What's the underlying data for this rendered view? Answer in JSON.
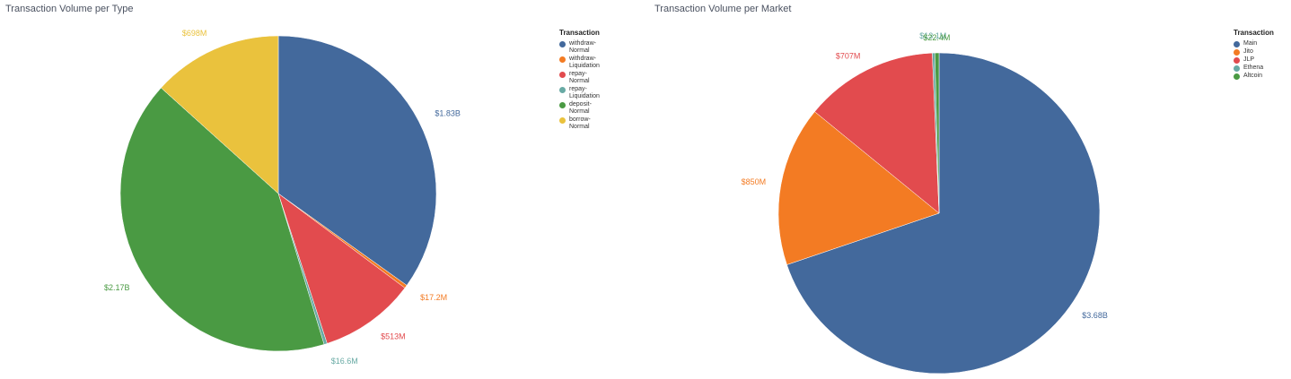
{
  "chart_data": [
    {
      "type": "pie",
      "title": "Transaction Volume per Type",
      "legend_title": "Transaction",
      "legend_position": "right",
      "slices": [
        {
          "name": "withdraw-Normal",
          "value": 1830,
          "label": "$1.83B",
          "color": "#43699c"
        },
        {
          "name": "withdraw-Liquidation",
          "value": 17.2,
          "label": "$17.2M",
          "color": "#f37b23"
        },
        {
          "name": "repay-Normal",
          "value": 513,
          "label": "$513M",
          "color": "#e24b4e"
        },
        {
          "name": "repay-Liquidation",
          "value": 16.6,
          "label": "$16.6M",
          "color": "#68aaa4"
        },
        {
          "name": "deposit-Normal",
          "value": 2170,
          "label": "$2.17B",
          "color": "#4a9a43"
        },
        {
          "name": "borrow-Normal",
          "value": 698,
          "label": "$698M",
          "color": "#eac23d"
        }
      ]
    },
    {
      "type": "pie",
      "title": "Transaction Volume per Market",
      "legend_title": "Transaction",
      "legend_position": "right",
      "slices": [
        {
          "name": "Main",
          "value": 3680,
          "label": "$3.68B",
          "color": "#43699c"
        },
        {
          "name": "Jito",
          "value": 850,
          "label": "$850M",
          "color": "#f37b23"
        },
        {
          "name": "JLP",
          "value": 707,
          "label": "$707M",
          "color": "#e24b4e"
        },
        {
          "name": "Ethena",
          "value": 13.1,
          "label": "$13.1M",
          "color": "#68aaa4"
        },
        {
          "name": "Altcoin",
          "value": 22.4,
          "label": "$22.4M",
          "color": "#4a9a43"
        }
      ]
    }
  ]
}
